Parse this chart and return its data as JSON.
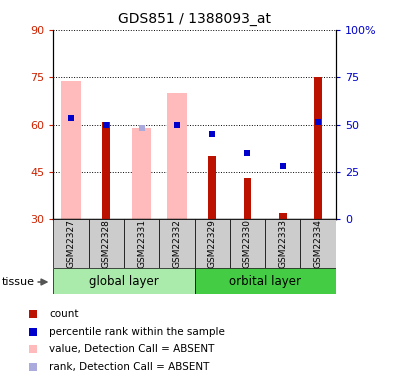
{
  "title": "GDS851 / 1388093_at",
  "samples": [
    "GSM22327",
    "GSM22328",
    "GSM22331",
    "GSM22332",
    "GSM22329",
    "GSM22330",
    "GSM22333",
    "GSM22334"
  ],
  "count_values": [
    30,
    61,
    30,
    30,
    50,
    43,
    32,
    75
  ],
  "rank_values": [
    62,
    60,
    null,
    60,
    57,
    51,
    47,
    61
  ],
  "absent_bar_values": [
    74,
    null,
    59,
    70,
    null,
    null,
    null,
    null
  ],
  "absent_rank_values": [
    62,
    null,
    59,
    60,
    null,
    null,
    null,
    null
  ],
  "ylim_left": [
    30,
    90
  ],
  "ylim_right": [
    0,
    100
  ],
  "yticks_left": [
    30,
    45,
    60,
    75,
    90
  ],
  "yticks_right": [
    0,
    25,
    50,
    75,
    100
  ],
  "left_tick_color": "#cc2200",
  "right_tick_color": "#0000cc",
  "count_color": "#bb1100",
  "rank_color": "#0000cc",
  "absent_bar_color": "#ffbbbb",
  "absent_rank_color": "#aaaadd",
  "grid_color": "#000000",
  "bg_color_sample": "#cccccc",
  "bg_color_group_global": "#aaeaaa",
  "bg_color_group_orbital": "#44cc44",
  "tissue_label": "tissue",
  "legend_items": [
    {
      "label": "count",
      "color": "#bb1100"
    },
    {
      "label": "percentile rank within the sample",
      "color": "#0000cc"
    },
    {
      "label": "value, Detection Call = ABSENT",
      "color": "#ffbbbb"
    },
    {
      "label": "rank, Detection Call = ABSENT",
      "color": "#aaaadd"
    }
  ]
}
